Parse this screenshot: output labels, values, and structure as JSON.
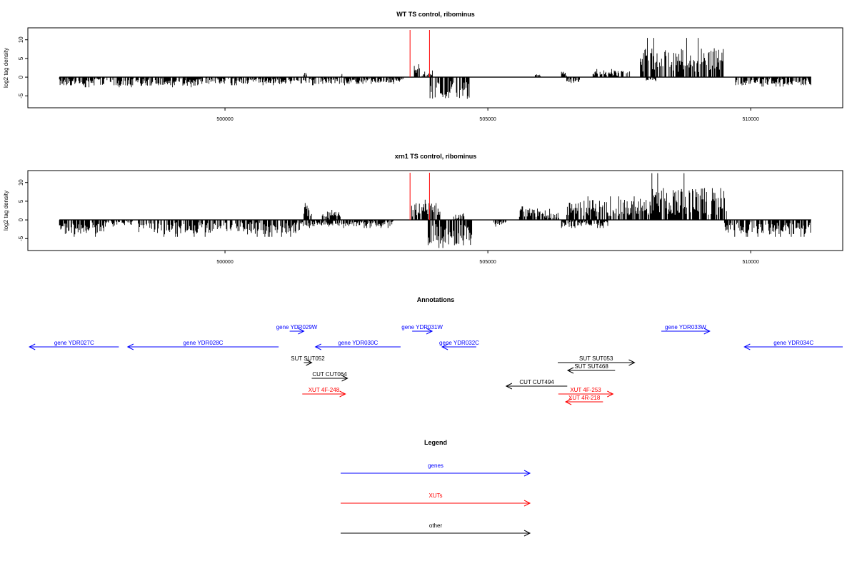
{
  "chart_data": [
    {
      "type": "bar",
      "title": "WT TS control, ribominus",
      "ylabel": "log2 tag density",
      "xlabel": "",
      "xlim": [
        496250,
        511750
      ],
      "ylim": [
        -8,
        13
      ],
      "yticks": [
        -5,
        0,
        5,
        10
      ],
      "xticks": [
        500000,
        505000,
        510000
      ],
      "grid": false,
      "highlight_lines": [
        {
          "x": 503520,
          "color": "#ff0000"
        },
        {
          "x": 503890,
          "color": "#ff0000"
        }
      ],
      "series": [
        {
          "strand": "plus",
          "segments": [
            {
              "from": 501500,
              "to": 501560,
              "mean": 1.0
            },
            {
              "from": 502200,
              "to": 502240,
              "mean": 0.6
            },
            {
              "from": 503600,
              "to": 503700,
              "mean": 2.5
            },
            {
              "from": 503750,
              "to": 503950,
              "mean": 1.0
            },
            {
              "from": 505900,
              "to": 506000,
              "mean": 0.5
            },
            {
              "from": 506400,
              "to": 506500,
              "mean": 0.8
            },
            {
              "from": 507000,
              "to": 507700,
              "mean": 1.2
            },
            {
              "from": 507900,
              "to": 509500,
              "mean": 5.0,
              "max": 10.5
            }
          ]
        },
        {
          "strand": "minus",
          "segments": [
            {
              "from": 496850,
              "to": 499500,
              "mean": -1.5
            },
            {
              "from": 499500,
              "to": 502500,
              "mean": -1.2
            },
            {
              "from": 502500,
              "to": 503400,
              "mean": -1.0
            },
            {
              "from": 503900,
              "to": 504650,
              "mean": -4.0,
              "min": -5.8
            },
            {
              "from": 506500,
              "to": 506750,
              "mean": -1.0
            },
            {
              "from": 508000,
              "to": 508200,
              "mean": -0.6
            },
            {
              "from": 509700,
              "to": 511150,
              "mean": -1.4
            }
          ]
        }
      ]
    },
    {
      "type": "bar",
      "title": "xrn1 TS control, ribominus",
      "ylabel": "log2 tag density",
      "xlabel": "",
      "xlim": [
        496250,
        511750
      ],
      "ylim": [
        -8,
        13
      ],
      "yticks": [
        -5,
        0,
        5,
        10
      ],
      "xticks": [
        500000,
        505000,
        510000
      ],
      "grid": false,
      "highlight_lines": [
        {
          "x": 503520,
          "color": "#ff0000"
        },
        {
          "x": 503890,
          "color": "#ff0000"
        }
      ],
      "series": [
        {
          "strand": "plus",
          "segments": [
            {
              "from": 501500,
              "to": 501650,
              "mean": 2.5
            },
            {
              "from": 501850,
              "to": 502200,
              "mean": 1.5
            },
            {
              "from": 503550,
              "to": 504100,
              "mean": 3.0
            },
            {
              "from": 504350,
              "to": 504550,
              "mean": 1.0
            },
            {
              "from": 505600,
              "to": 506350,
              "mean": 2.0
            },
            {
              "from": 506500,
              "to": 507900,
              "mean": 3.5
            },
            {
              "from": 507900,
              "to": 509550,
              "mean": 5.5,
              "max": 12.5
            }
          ]
        },
        {
          "strand": "minus",
          "segments": [
            {
              "from": 496850,
              "to": 497700,
              "mean": -2.5
            },
            {
              "from": 497700,
              "to": 498250,
              "mean": -1.0
            },
            {
              "from": 498350,
              "to": 501450,
              "mean": -2.5
            },
            {
              "from": 501450,
              "to": 503200,
              "mean": -1.2
            },
            {
              "from": 503850,
              "to": 504700,
              "mean": -4.5,
              "min": -7.5
            },
            {
              "from": 505100,
              "to": 505350,
              "mean": -1.0
            },
            {
              "from": 506400,
              "to": 507300,
              "mean": -1.2
            },
            {
              "from": 509500,
              "to": 511150,
              "mean": -2.5
            }
          ]
        }
      ]
    },
    {
      "type": "annotations",
      "title": "Annotations",
      "xlim": [
        496250,
        511750
      ],
      "features": [
        {
          "label": "gene YDR027C",
          "from": 496280,
          "to": 497980,
          "dir": "minus",
          "color": "#0000ff",
          "row": 1
        },
        {
          "label": "gene YDR028C",
          "from": 498150,
          "to": 501020,
          "dir": "minus",
          "color": "#0000ff",
          "row": 1
        },
        {
          "label": "gene YDR029W",
          "from": 501230,
          "to": 501500,
          "dir": "plus",
          "color": "#0000ff",
          "row": 0
        },
        {
          "label": "gene YDR030C",
          "from": 501720,
          "to": 503340,
          "dir": "minus",
          "color": "#0000ff",
          "row": 1
        },
        {
          "label": "gene YDR031W",
          "from": 503560,
          "to": 503940,
          "dir": "plus",
          "color": "#0000ff",
          "row": 0
        },
        {
          "label": "gene YDR032C",
          "from": 504130,
          "to": 504780,
          "dir": "minus",
          "color": "#0000ff",
          "row": 1
        },
        {
          "label": "gene YDR033W",
          "from": 508300,
          "to": 509220,
          "dir": "plus",
          "color": "#0000ff",
          "row": 0
        },
        {
          "label": "gene YDR034C",
          "from": 509880,
          "to": 511750,
          "dir": "minus",
          "color": "#0000ff",
          "row": 1
        },
        {
          "label": "SUT SUT052",
          "from": 501500,
          "to": 501650,
          "dir": "plus",
          "color": "#000000",
          "row": 2
        },
        {
          "label": "CUT CUT064",
          "from": 501650,
          "to": 502330,
          "dir": "plus",
          "color": "#000000",
          "row": 3
        },
        {
          "label": "XUT 4F-248",
          "from": 501470,
          "to": 502290,
          "dir": "plus",
          "color": "#ff0000",
          "row": 4
        },
        {
          "label": "SUT SUT053",
          "from": 506330,
          "to": 507790,
          "dir": "plus",
          "color": "#000000",
          "row": 2
        },
        {
          "label": "SUT SUT468",
          "from": 506520,
          "to": 507420,
          "dir": "minus",
          "color": "#000000",
          "row": 2.5
        },
        {
          "label": "CUT CUT494",
          "from": 505350,
          "to": 506510,
          "dir": "minus",
          "color": "#000000",
          "row": 3.5
        },
        {
          "label": "XUT 4F-253",
          "from": 506340,
          "to": 507380,
          "dir": "plus",
          "color": "#ff0000",
          "row": 4
        },
        {
          "label": "XUT 4R-218",
          "from": 506480,
          "to": 507190,
          "dir": "minus",
          "color": "#ff0000",
          "row": 4.5
        }
      ]
    },
    {
      "type": "legend",
      "title": "Legend",
      "entries": [
        {
          "label": "genes",
          "color": "#0000ff"
        },
        {
          "label": "XUTs",
          "color": "#ff0000"
        },
        {
          "label": "other",
          "color": "#000000"
        }
      ]
    }
  ]
}
